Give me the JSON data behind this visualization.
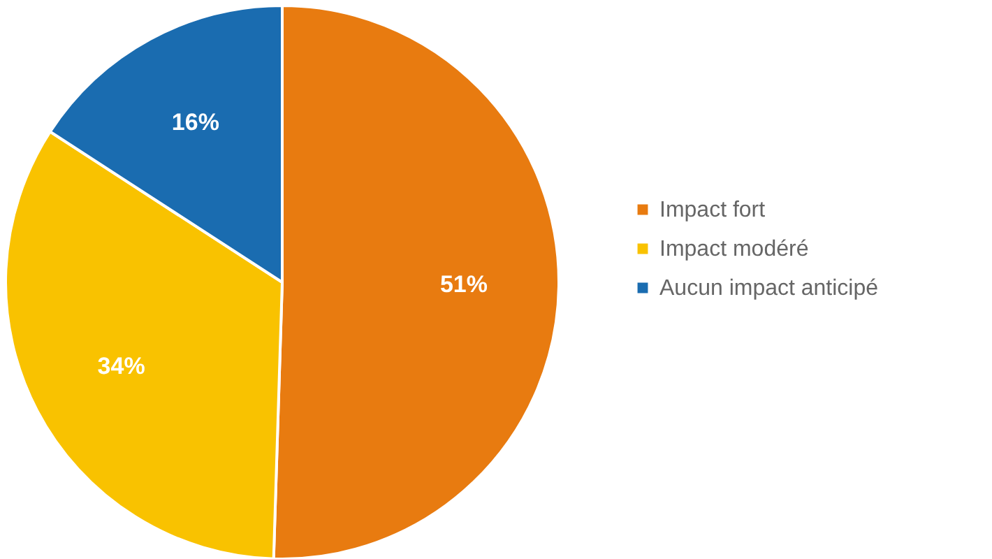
{
  "chart_data": {
    "type": "pie",
    "categories": [
      "Impact fort",
      "Impact modéré",
      "Aucun impact anticipé"
    ],
    "values": [
      51,
      34,
      16
    ],
    "colors": [
      "#e87b10",
      "#f9c200",
      "#1a6cb0"
    ],
    "value_labels": [
      "51%",
      "34%",
      "16%"
    ],
    "legend": "right"
  }
}
